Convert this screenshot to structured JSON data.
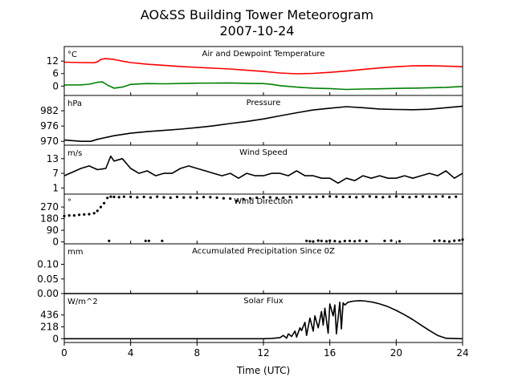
{
  "figure": {
    "title_line1": "AO&SS Building Tower Meteorogram",
    "title_line2": "2007-10-24",
    "xlabel": "Time (UTC)"
  },
  "chart_data": [
    {
      "type": "line",
      "panel_title": "Air and Dewpoint Temperature",
      "unit": "°C",
      "ylim": [
        -4.5,
        19
      ],
      "yticks": [
        0,
        6,
        12
      ],
      "xlim": [
        0,
        24
      ],
      "series": [
        {
          "color": "#ff0000",
          "x": [
            0,
            1,
            1.8,
            2,
            2.2,
            2.5,
            3,
            3.5,
            4,
            5,
            6,
            7,
            8,
            9,
            10,
            11,
            12,
            13,
            14,
            15,
            16,
            17,
            18,
            19,
            20,
            21,
            22,
            23,
            24
          ],
          "y": [
            11.5,
            11.3,
            11.2,
            11.6,
            12.8,
            13.2,
            12.8,
            12,
            11.3,
            10.5,
            10,
            9.4,
            9,
            8.6,
            8.2,
            7.6,
            7,
            6.3,
            5.9,
            6.1,
            6.6,
            7.2,
            8,
            8.7,
            9.3,
            9.7,
            9.8,
            9.6,
            9.3
          ]
        },
        {
          "color": "#008000",
          "x": [
            0,
            1,
            1.5,
            2,
            2.3,
            2.6,
            3,
            3.5,
            4,
            5,
            6,
            8,
            10,
            11,
            12,
            12.5,
            13,
            14,
            15,
            16,
            16.5,
            17,
            18,
            19,
            20,
            21,
            22,
            23,
            24
          ],
          "y": [
            0.5,
            0.6,
            0.9,
            1.8,
            2,
            0.5,
            -1,
            -0.5,
            0.8,
            1.2,
            1.1,
            1.4,
            1.5,
            1.3,
            1.2,
            0.8,
            0.2,
            -0.5,
            -1,
            -1.2,
            -1.4,
            -1.6,
            -1.4,
            -1.3,
            -1.1,
            -1,
            -0.8,
            -0.6,
            -0.2
          ]
        }
      ]
    },
    {
      "type": "line",
      "panel_title": "Pressure",
      "unit": "hPa",
      "ylim": [
        968.5,
        988
      ],
      "yticks": [
        970,
        976,
        982
      ],
      "xlim": [
        0,
        24
      ],
      "series": [
        {
          "color": "#000000",
          "x": [
            0,
            1,
            1.6,
            2,
            3,
            4,
            5,
            6,
            7,
            8,
            9,
            10,
            11,
            12,
            13,
            14,
            15,
            16,
            17,
            18,
            19,
            20,
            21,
            22,
            23,
            24
          ],
          "y": [
            970.5,
            970,
            970,
            970.8,
            972.2,
            973.2,
            973.8,
            974.3,
            974.8,
            975.4,
            976.1,
            977,
            977.8,
            978.8,
            980,
            981.2,
            982.3,
            983,
            983.6,
            983.2,
            982.7,
            982.5,
            982.4,
            982.6,
            983.2,
            983.8
          ]
        }
      ]
    },
    {
      "type": "line",
      "panel_title": "Wind Speed",
      "unit": "m/s",
      "ylim": [
        -1.5,
        18.5
      ],
      "yticks": [
        1,
        7,
        13
      ],
      "xlim": [
        0,
        24
      ],
      "series": [
        {
          "color": "#000000",
          "x": [
            0,
            0.5,
            1,
            1.5,
            2,
            2.5,
            2.8,
            3,
            3.5,
            4,
            4.5,
            5,
            5.5,
            6,
            6.5,
            7,
            7.5,
            8,
            8.5,
            9,
            9.5,
            10,
            10.5,
            11,
            11.5,
            12,
            12.5,
            13,
            13.5,
            14,
            14.5,
            15,
            15.5,
            16,
            16.5,
            17,
            17.5,
            18,
            18.5,
            19,
            19.5,
            20,
            20.5,
            21,
            21.5,
            22,
            22.5,
            23,
            23.5,
            24
          ],
          "y": [
            6,
            7.5,
            9,
            10,
            8.5,
            9,
            14,
            12,
            13,
            9,
            7,
            8,
            6,
            7,
            7,
            9,
            10,
            9,
            8,
            7,
            6,
            7,
            5,
            7,
            6,
            6,
            7,
            7,
            6,
            8,
            6,
            6,
            5,
            5,
            3,
            5,
            4,
            6,
            5,
            6,
            5,
            5,
            6,
            5,
            6,
            7,
            6,
            8,
            5,
            7
          ]
        }
      ]
    },
    {
      "type": "scatter",
      "panel_title": "Wind Direction",
      "unit": "°",
      "ylim": [
        -15,
        370
      ],
      "yticks": [
        0,
        90,
        180,
        270
      ],
      "xlim": [
        0,
        24
      ],
      "series": [
        {
          "color": "#000000",
          "x": [
            0,
            0.3,
            0.6,
            0.9,
            1.2,
            1.5,
            1.8,
            2,
            2.2,
            2.4,
            2.6,
            2.8,
            3,
            3.3,
            3.6,
            4,
            4.4,
            4.8,
            5.2,
            5.6,
            6,
            6.4,
            6.8,
            7.2,
            7.6,
            8,
            8.4,
            8.8,
            9.2,
            9.6,
            10,
            10.4,
            10.8,
            11.2,
            11.6,
            12,
            12.4,
            12.8,
            13.2,
            13.6,
            14,
            14.4,
            14.8,
            15.2,
            15.6,
            16,
            16.4,
            16.8,
            17.2,
            17.6,
            18,
            18.4,
            18.8,
            19.2,
            19.6,
            20,
            20.4,
            20.8,
            21.2,
            21.6,
            22,
            22.4,
            22.8,
            23.2,
            23.6
          ],
          "y": [
            200,
            205,
            205,
            210,
            212,
            215,
            222,
            240,
            270,
            300,
            340,
            350,
            348,
            346,
            350,
            348,
            345,
            348,
            344,
            350,
            345,
            342,
            348,
            344,
            345,
            340,
            347,
            346,
            342,
            338,
            335,
            318,
            330,
            338,
            342,
            346,
            345,
            340,
            342,
            348,
            346,
            350,
            345,
            348,
            350,
            352,
            350,
            348,
            348,
            346,
            350,
            352,
            348,
            346,
            350,
            352,
            348,
            346,
            350,
            352,
            348,
            350,
            352,
            346,
            350
          ]
        },
        {
          "color": "#000000",
          "x": [
            2.7,
            4.9,
            5.1,
            5.9,
            14.6,
            14.8,
            15.0,
            15.3,
            15.5,
            15.8,
            16.0,
            16.3,
            16.6,
            16.9,
            17.2,
            17.5,
            17.8,
            18.2,
            19.3,
            19.7,
            20.2,
            22.3,
            22.6,
            22.9,
            23.2,
            23.5,
            23.8,
            24.0
          ],
          "y": [
            8,
            8,
            8,
            8,
            8,
            5,
            3,
            10,
            8,
            4,
            9,
            6,
            2,
            7,
            8,
            5,
            9,
            6,
            8,
            10,
            5,
            8,
            10,
            6,
            3,
            9,
            12,
            18
          ]
        }
      ]
    },
    {
      "type": "line",
      "panel_title": "Accumulated Precipitation Since 0Z",
      "unit": "mm",
      "ylim": [
        0,
        0.17
      ],
      "yticks": [
        0.0,
        0.05,
        0.1
      ],
      "ytick_labels": [
        "0.00",
        "0.05",
        "0.10"
      ],
      "xlim": [
        0,
        24
      ],
      "series": [
        {
          "color": "#000000",
          "x": [
            0,
            24
          ],
          "y": [
            0,
            0
          ]
        }
      ]
    },
    {
      "type": "line",
      "panel_title": "Solar Flux",
      "unit": "W/m^2",
      "ylim": [
        -70,
        830
      ],
      "yticks": [
        0,
        218,
        436
      ],
      "xlim": [
        0,
        24
      ],
      "series": [
        {
          "color": "#000000",
          "x": [
            0,
            12,
            12.5,
            13,
            13.2,
            13.4,
            13.5,
            13.7,
            13.9,
            14,
            14.2,
            14.3,
            14.5,
            14.6,
            14.8,
            15,
            15.1,
            15.3,
            15.5,
            15.6,
            15.7,
            15.9,
            16,
            16.2,
            16.3,
            16.4,
            16.6,
            16.7,
            16.8,
            16.9,
            17.1,
            17.4,
            17.8,
            18.2,
            18.6,
            19,
            19.5,
            20,
            20.5,
            21,
            21.5,
            22,
            22.5,
            23,
            23.5,
            24
          ],
          "y": [
            0,
            0,
            5,
            20,
            60,
            10,
            90,
            40,
            140,
            30,
            200,
            150,
            300,
            60,
            380,
            140,
            420,
            200,
            500,
            250,
            560,
            100,
            640,
            420,
            620,
            90,
            670,
            180,
            660,
            620,
            670,
            690,
            700,
            690,
            670,
            640,
            590,
            520,
            440,
            350,
            250,
            150,
            60,
            8,
            2,
            0
          ]
        }
      ]
    }
  ],
  "xaxis": {
    "ticks": [
      0,
      4,
      8,
      12,
      16,
      20,
      24
    ],
    "tick_labels": [
      "0",
      "4",
      "8",
      "12",
      "16",
      "20",
      "24"
    ]
  }
}
